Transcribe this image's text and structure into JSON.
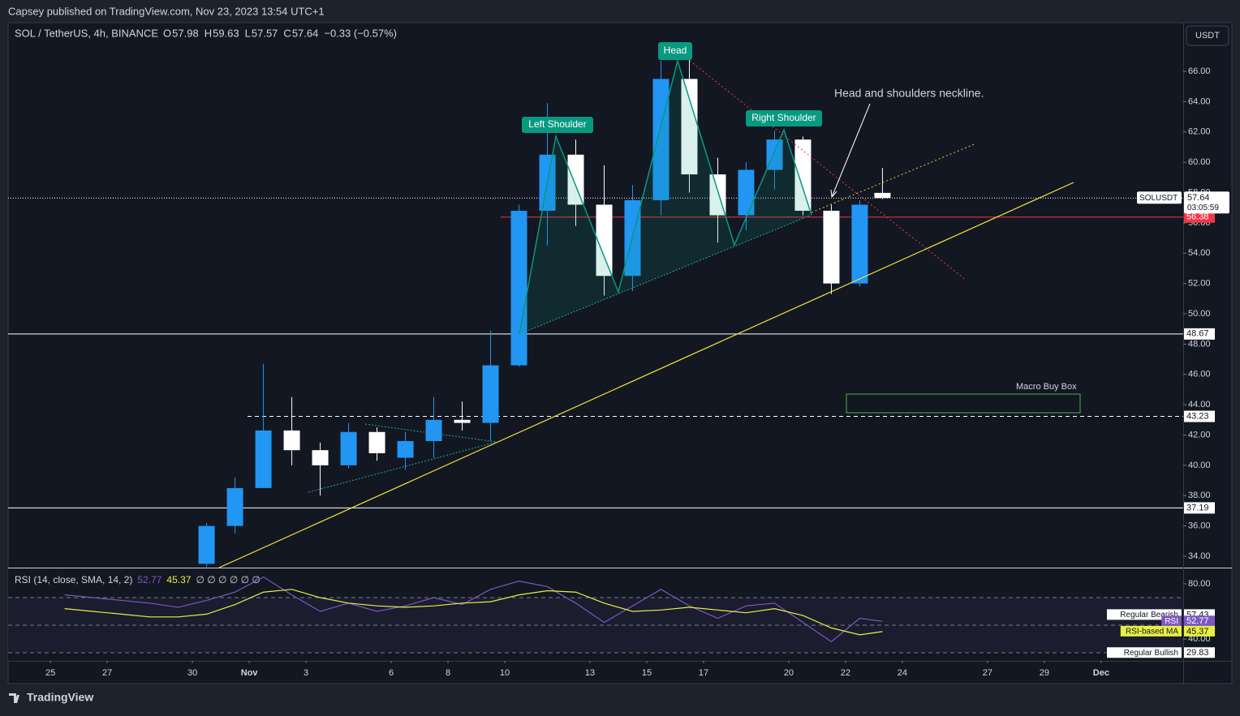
{
  "header": {
    "publisher": "Capsey published on TradingView.com, Nov 23, 2023 13:54 UTC+1",
    "brand": "TradingView",
    "currency_button": "USDT"
  },
  "chart_data": {
    "type": "candlestick",
    "title": "SOL / TetherUS, 4h, BINANCE",
    "ohlc_labels": [
      "O",
      "H",
      "L",
      "C"
    ],
    "ohlc_values": [
      57.98,
      59.63,
      57.57,
      57.64
    ],
    "change": "−0.33 (−0.57%)",
    "x": [
      5.5,
      6.5,
      7.5,
      8.5,
      9.5,
      10.5,
      11.5,
      12.5,
      13.5,
      14.5,
      15.5,
      16.5,
      17.5,
      18.5,
      19.5,
      20.5,
      21.5,
      22.5,
      23.5,
      24.5,
      25.5,
      26.5,
      27.5,
      28.5,
      29.3
    ],
    "open": [
      33.5,
      36.0,
      38.5,
      42.3,
      41.0,
      40.0,
      42.2,
      40.5,
      41.6,
      43.0,
      42.8,
      46.6,
      56.8,
      60.5,
      57.2,
      52.5,
      57.5,
      65.5,
      59.2,
      56.5,
      59.5,
      61.5,
      56.8,
      52.0,
      57.98
    ],
    "high": [
      36.2,
      39.2,
      46.7,
      44.5,
      41.5,
      42.8,
      42.5,
      42.2,
      44.5,
      44.2,
      48.9,
      57.2,
      63.9,
      61.5,
      59.8,
      58.5,
      66.7,
      67.8,
      60.3,
      60.0,
      62.1,
      61.7,
      57.2,
      57.5,
      59.63
    ],
    "low": [
      33.3,
      35.5,
      38.5,
      40.0,
      38.0,
      39.8,
      40.3,
      39.7,
      40.5,
      42.3,
      41.6,
      46.5,
      54.5,
      55.8,
      51.2,
      51.5,
      56.5,
      58.0,
      54.7,
      55.5,
      58.2,
      56.5,
      51.3,
      51.8,
      57.57
    ],
    "close": [
      36.0,
      38.5,
      42.3,
      41.0,
      40.0,
      42.2,
      40.8,
      41.6,
      43.0,
      42.8,
      46.6,
      56.8,
      60.5,
      57.2,
      52.5,
      57.5,
      65.5,
      59.2,
      56.5,
      59.5,
      61.5,
      56.8,
      52.0,
      57.2,
      57.64
    ],
    "up_color": "#2196f3",
    "down_color": "#ffffff",
    "xlim": [
      -1.49,
      39.89
    ],
    "xticks": [
      {
        "value": 0,
        "label": "25"
      },
      {
        "value": 2,
        "label": "27"
      },
      {
        "value": 5,
        "label": "30"
      },
      {
        "value": 7,
        "label": "Nov"
      },
      {
        "value": 9,
        "label": "3"
      },
      {
        "value": 12,
        "label": "6"
      },
      {
        "value": 14,
        "label": "8"
      },
      {
        "value": 16,
        "label": "10"
      },
      {
        "value": 19,
        "label": "13"
      },
      {
        "value": 21,
        "label": "15"
      },
      {
        "value": 23,
        "label": "17"
      },
      {
        "value": 26,
        "label": "20"
      },
      {
        "value": 28,
        "label": "22"
      },
      {
        "value": 30,
        "label": "24"
      },
      {
        "value": 33,
        "label": "27"
      },
      {
        "value": 35,
        "label": "29"
      },
      {
        "value": 37,
        "label": "Dec"
      }
    ],
    "ylim": [
      33.25,
      69.21
    ],
    "yticks": [
      {
        "value": 34,
        "label": "34.00"
      },
      {
        "value": 36,
        "label": "36.00"
      },
      {
        "value": 38,
        "label": "38.00"
      },
      {
        "value": 40,
        "label": "40.00"
      },
      {
        "value": 42,
        "label": "42.00"
      },
      {
        "value": 44,
        "label": "44.00"
      },
      {
        "value": 46,
        "label": "46.00"
      },
      {
        "value": 48,
        "label": "48.00"
      },
      {
        "value": 50,
        "label": "50.00"
      },
      {
        "value": 52,
        "label": "52.00"
      },
      {
        "value": 54,
        "label": "54.00"
      },
      {
        "value": 56,
        "label": "56.00"
      },
      {
        "value": 58,
        "label": "58.00"
      },
      {
        "value": 60,
        "label": "60.00"
      },
      {
        "value": 62,
        "label": "62.00"
      },
      {
        "value": 64,
        "label": "64.00"
      },
      {
        "value": 66,
        "label": "66.00"
      }
    ],
    "support_levels": [
      48.67,
      37.19
    ],
    "dashed_level": 43.23,
    "red_level": 56.38,
    "symbol_label": "SOLUSDT",
    "last_price": 57.64,
    "countdown": "03:05:59",
    "annotations": [
      "Head",
      "Left Shoulder",
      "Right Shoulder",
      "Head and shoulders neckline.",
      "Macro Buy Box"
    ],
    "rsi": {
      "title": "RSI (14, close, SMA, 14, 2)",
      "rsi_value": 52.77,
      "ma_value": 45.37,
      "null_marks": "∅ ∅ ∅ ∅ ∅ ∅",
      "x": [
        0.5,
        1.5,
        2.5,
        3.5,
        4.5,
        5.5,
        6.5,
        7.5,
        8.5,
        9.5,
        10.5,
        11.5,
        12.5,
        13.5,
        14.5,
        15.5,
        16.5,
        17.5,
        18.5,
        19.5,
        20.5,
        21.5,
        22.5,
        23.5,
        24.5,
        25.5,
        26.5,
        27.5,
        28.5,
        29.3
      ],
      "series": [
        {
          "name": "RSI",
          "color": "#7e57c2",
          "values": [
            72,
            70,
            68,
            66,
            63,
            68,
            74,
            85,
            72,
            60,
            66,
            60,
            64,
            70,
            65,
            76,
            82,
            78,
            66,
            52,
            64,
            76,
            64,
            55,
            64,
            66,
            52,
            38,
            55,
            52.77
          ]
        },
        {
          "name": "RSI-based MA",
          "color": "#e6f043",
          "values": [
            62,
            60,
            58,
            56,
            56,
            58,
            65,
            74,
            76,
            70,
            66,
            64,
            63,
            64,
            66,
            67,
            72,
            75,
            74,
            66,
            60,
            61,
            63,
            61,
            59,
            62,
            57,
            48,
            43,
            45.37
          ]
        }
      ],
      "bearish_label": "Regular Bearish",
      "bearish_value": 57.43,
      "bullish_label": "Regular Bullish",
      "bullish_value": 29.83,
      "band_lines": [
        70,
        50,
        30
      ],
      "ylim": [
        24.1,
        91.2
      ],
      "yticks": [
        {
          "value": 80,
          "label": "80.00"
        },
        {
          "value": 40,
          "label": "40.00"
        }
      ]
    }
  }
}
